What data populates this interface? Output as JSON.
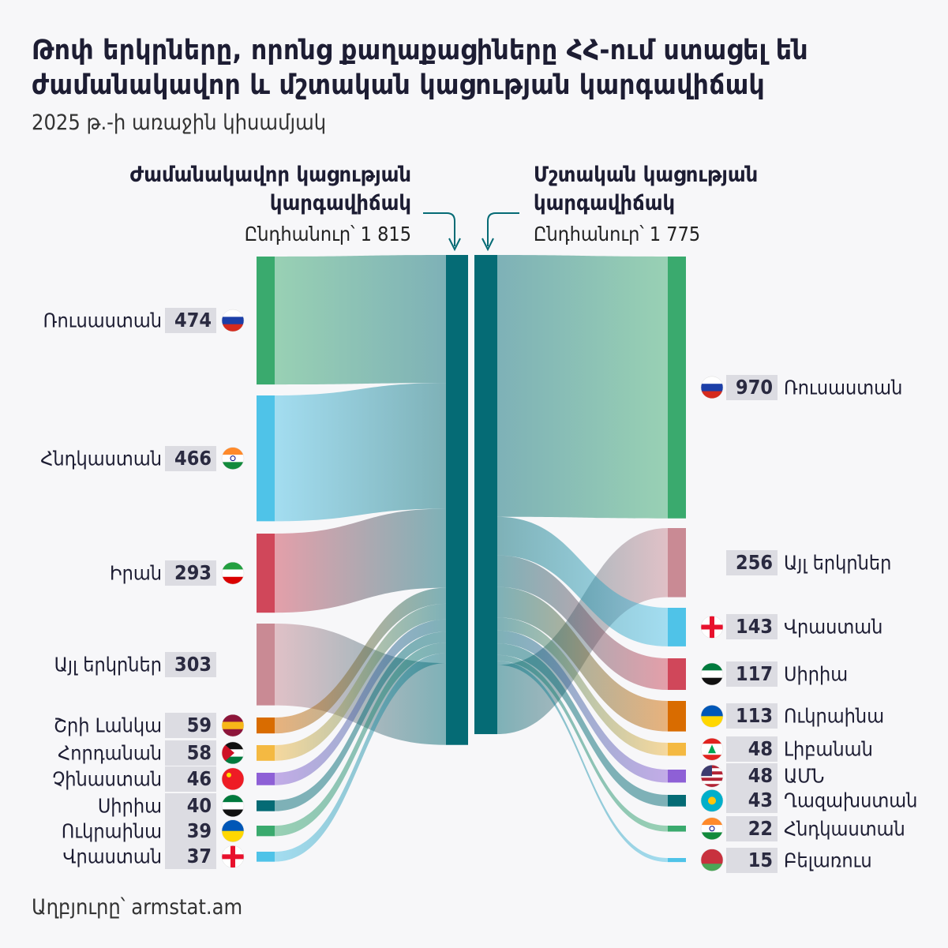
{
  "title": "Թոփ երկրները, որոնց քաղաքացիները ՀՀ-ում ստացել են ժամանակավոր և մշտական կացության կարգավիճակ",
  "subtitle": "2025 թ.-ի առաջին կիսամյակ",
  "source": "Աղբյուրը՝ armstat.am",
  "colors": {
    "center": "#056b75",
    "green": "#3aaa6e",
    "lightblue": "#4fc3e8",
    "red": "#d0475a",
    "pink": "#c98a94",
    "orange": "#d96c00",
    "yellow": "#f4b942",
    "purple": "#8e60d6",
    "teal": "#056b75"
  },
  "temporary": {
    "heading": "Ժամանակավոր կացության կարգավիճակ",
    "total_label": "Ընդհանուր՝ 1 815",
    "total": 1815,
    "countries": [
      {
        "name": "Ռուսաստան",
        "value": 474,
        "flag": "russia-flag-icon",
        "color": "#3aaa6e"
      },
      {
        "name": "Հնդկաստան",
        "value": 466,
        "flag": "india-flag-icon",
        "color": "#4fc3e8"
      },
      {
        "name": "Իրան",
        "value": 293,
        "flag": "iran-flag-icon",
        "color": "#d0475a"
      },
      {
        "name": "Այլ երկրներ",
        "value": 303,
        "flag": "",
        "color": "#c98a94"
      },
      {
        "name": "Շրի Լանկա",
        "value": 59,
        "flag": "sri-lanka-flag-icon",
        "color": "#d96c00"
      },
      {
        "name": "Հորդանան",
        "value": 58,
        "flag": "jordan-flag-icon",
        "color": "#f4b942"
      },
      {
        "name": "Չինաստան",
        "value": 46,
        "flag": "china-flag-icon",
        "color": "#8e60d6"
      },
      {
        "name": "Սիրիա",
        "value": 40,
        "flag": "syria-flag-icon",
        "color": "#056b75"
      },
      {
        "name": "Ուկրաինա",
        "value": 39,
        "flag": "ukraine-flag-icon",
        "color": "#3aaa6e"
      },
      {
        "name": "Վրաստան",
        "value": 37,
        "flag": "georgia-flag-icon",
        "color": "#4fc3e8"
      }
    ]
  },
  "permanent": {
    "heading": "Մշտական կացության կարգավիճակ",
    "total_label": "Ընդհանուր՝ 1 775",
    "total": 1775,
    "countries": [
      {
        "name": "Ռուսաստան",
        "value": 970,
        "flag": "russia-flag-icon",
        "color": "#3aaa6e"
      },
      {
        "name": "Այլ երկրներ",
        "value": 256,
        "flag": "",
        "color": "#c98a94"
      },
      {
        "name": "Վրաստան",
        "value": 143,
        "flag": "georgia-flag-icon",
        "color": "#4fc3e8"
      },
      {
        "name": "Սիրիա",
        "value": 117,
        "flag": "syria-flag-icon",
        "color": "#d0475a"
      },
      {
        "name": "Ուկրաինա",
        "value": 113,
        "flag": "ukraine-flag-icon",
        "color": "#d96c00"
      },
      {
        "name": "Լիբանան",
        "value": 48,
        "flag": "lebanon-flag-icon",
        "color": "#f4b942"
      },
      {
        "name": "ԱՄՆ",
        "value": 48,
        "flag": "usa-flag-icon",
        "color": "#8e60d6"
      },
      {
        "name": "Ղազախստան",
        "value": 43,
        "flag": "kazakhstan-flag-icon",
        "color": "#056b75"
      },
      {
        "name": "Հնդկաստան",
        "value": 22,
        "flag": "india-flag-icon",
        "color": "#3aaa6e"
      },
      {
        "name": "Բելառուս",
        "value": 15,
        "flag": "belarus-flag-icon",
        "color": "#4fc3e8"
      }
    ]
  }
}
